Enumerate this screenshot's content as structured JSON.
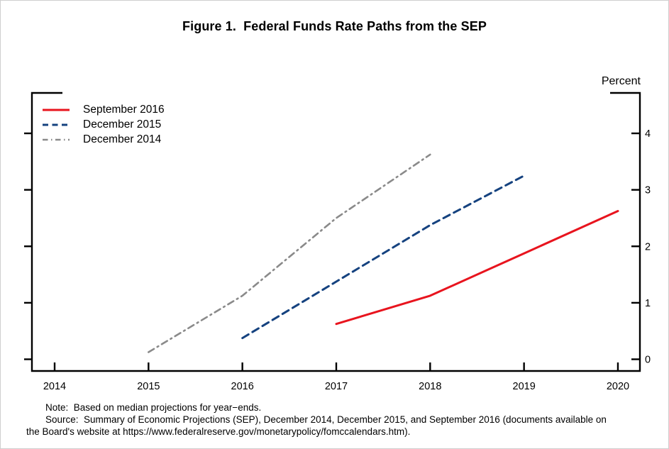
{
  "chart_data": {
    "type": "line",
    "title": "Figure 1.  Federal Funds Rate Paths from the SEP",
    "y_axis": {
      "unit_label": "Percent",
      "ticks": [
        0,
        1,
        2,
        3,
        4
      ],
      "range": [
        0,
        4.72
      ],
      "labels_side": "right"
    },
    "x_axis": {
      "tick_years": [
        2014,
        2015,
        2016,
        2017,
        2018,
        2019,
        2020
      ],
      "plot_offset_years": 1
    },
    "grid": false,
    "legend_position": "top-left",
    "series": [
      {
        "name": "September 2016",
        "color": "#e8141e",
        "line_style": "solid",
        "year_ends": [
          2016,
          2017,
          2018,
          2019
        ],
        "values": [
          0.625,
          1.125,
          1.875,
          2.625
        ]
      },
      {
        "name": "December 2015",
        "color": "#15427f",
        "line_style": "dashed",
        "year_ends": [
          2015,
          2016,
          2017,
          2018
        ],
        "values": [
          0.375,
          1.375,
          2.375,
          3.25
        ]
      },
      {
        "name": "December 2014",
        "color": "#8a8a8a",
        "line_style": "dash-dot",
        "year_ends": [
          2014,
          2015,
          2016,
          2017
        ],
        "values": [
          0.125,
          1.125,
          2.5,
          3.625
        ]
      }
    ]
  },
  "notes": {
    "note": "Note:  Based on median projections for year−ends.",
    "source": "Source:  Summary of Economic Projections (SEP), December 2014, December 2015, and September 2016 (documents available on the Board's website at https://www.federalreserve.gov/monetarypolicy/fomccalendars.htm)."
  }
}
